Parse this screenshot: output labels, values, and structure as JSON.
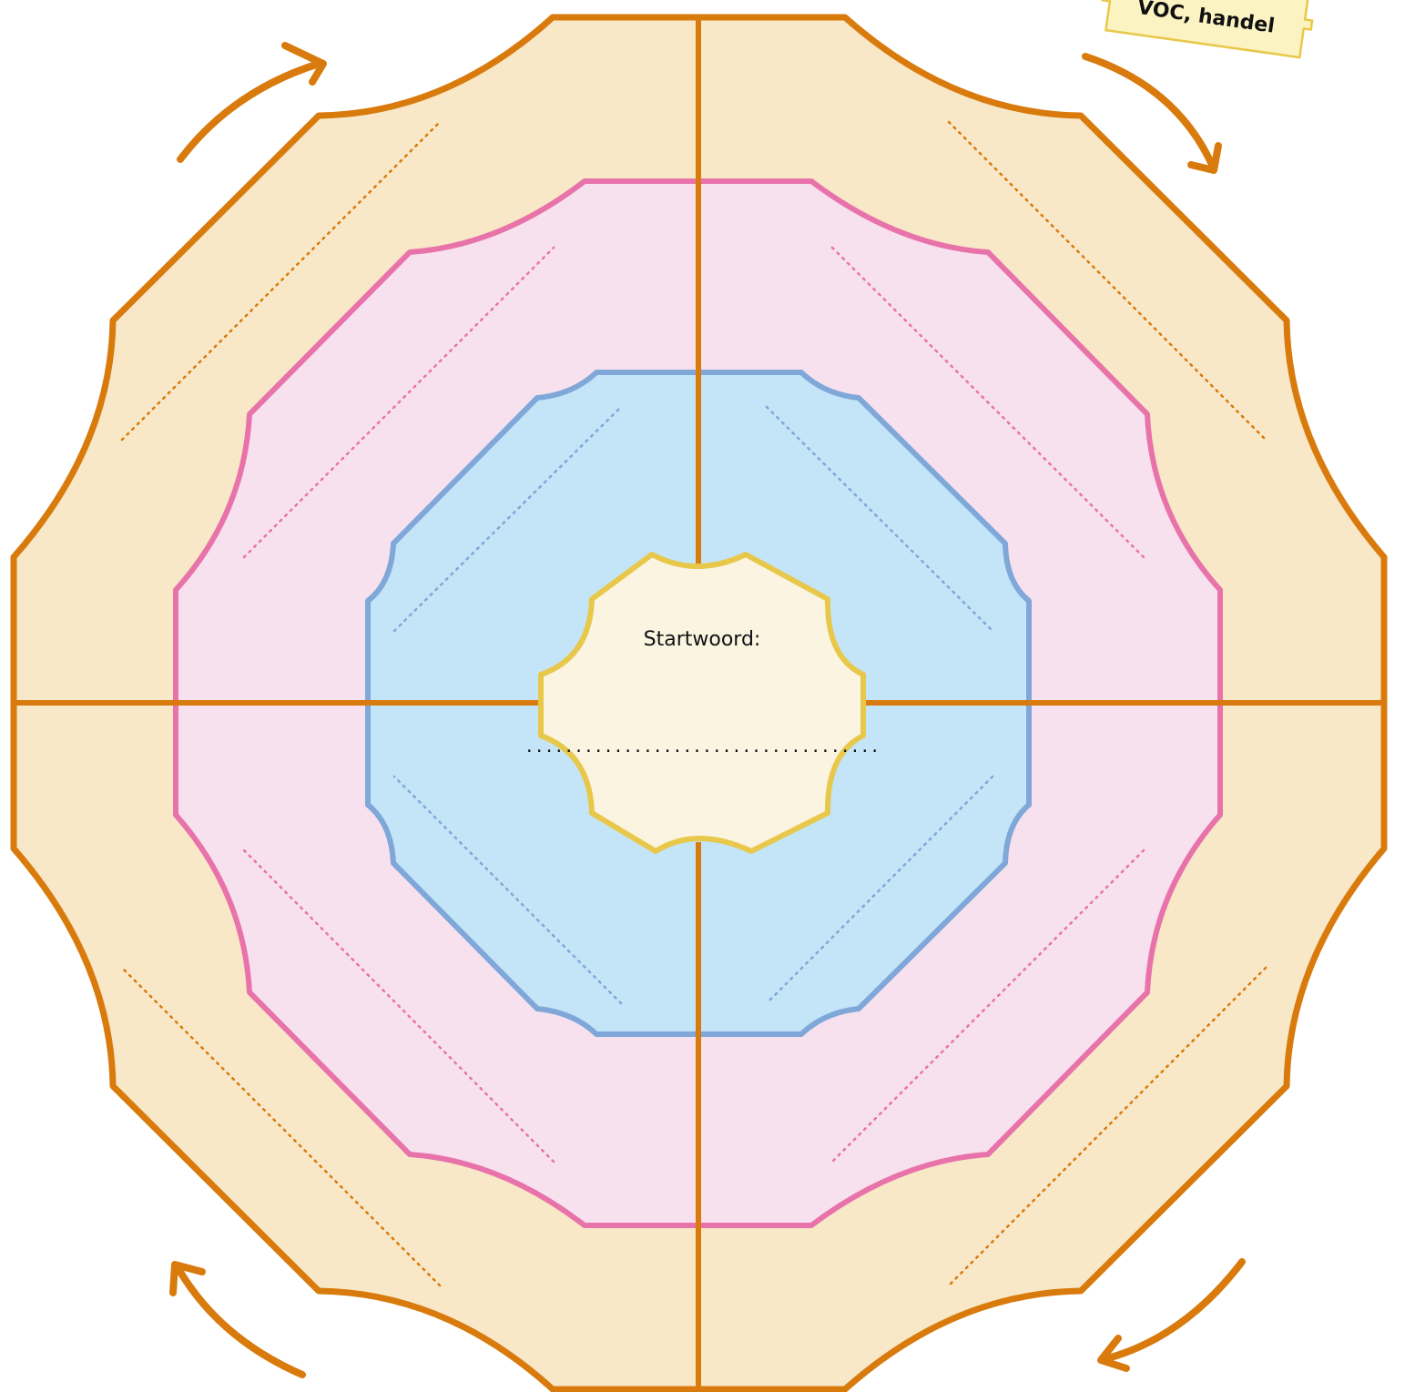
{
  "center": {
    "label": "Startwoord:",
    "answer_line": "...................................."
  },
  "tag": {
    "text": "VOC, handel"
  },
  "colors": {
    "outer_fill": "#F8E8C8",
    "outer_stroke": "#D97A0C",
    "middle_fill": "#F7E1EE",
    "middle_stroke": "#E873AA",
    "inner_fill": "#C4E5F8",
    "inner_stroke": "#7FA7D8",
    "center_fill": "#FAF4E1",
    "center_stroke": "#E8C84A",
    "tag_fill": "#FBF3C2",
    "tag_stroke": "#E8C84A"
  },
  "rings": [
    "outer",
    "middle",
    "inner"
  ],
  "rotation_arrows": [
    "top-left",
    "top-right",
    "bottom-right",
    "bottom-left"
  ]
}
